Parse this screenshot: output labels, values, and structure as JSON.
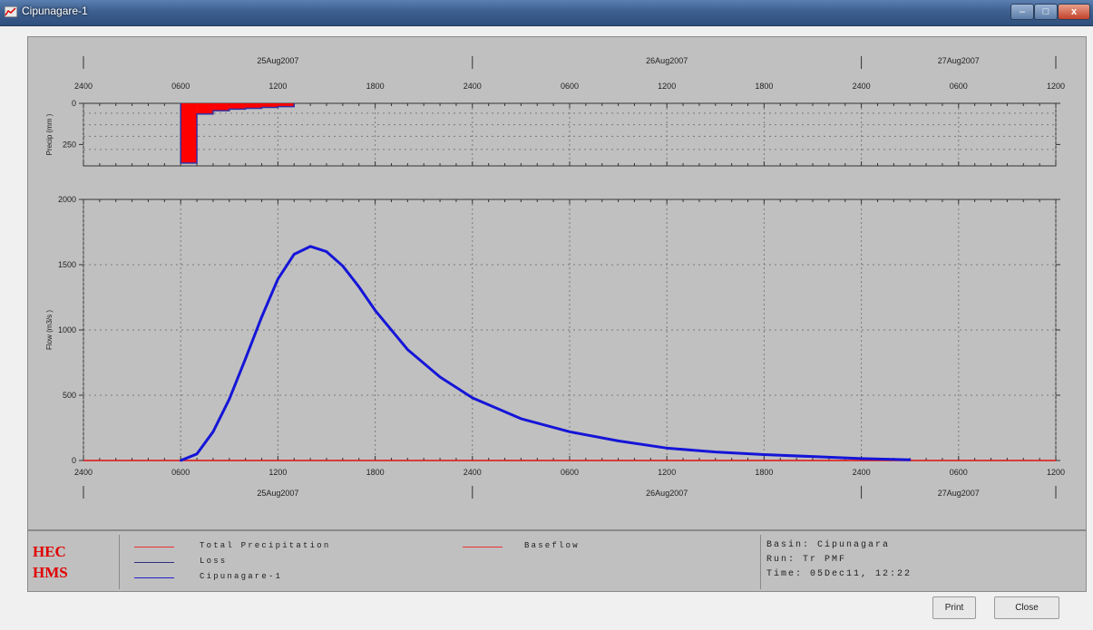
{
  "window": {
    "title": "Cipunagare-1",
    "minimize": "–",
    "maximize": "□",
    "close": "x",
    "app_icon": "chart-window-icon"
  },
  "plot": {
    "date_labels": [
      "25Aug2007",
      "26Aug2007",
      "27Aug2007"
    ],
    "time_ticks": [
      "2400",
      "0600",
      "1200",
      "1800",
      "2400",
      "0600",
      "1200",
      "1800",
      "2400",
      "0600",
      "1200"
    ],
    "colors": {
      "background": "#c0c0c0",
      "precip": "#ff0000",
      "flow": "#1515d8",
      "baseflow": "#e01010",
      "grid": "#7a7a7a"
    }
  },
  "chart_data": [
    {
      "type": "bar",
      "ylabel": "Precip (mm  )",
      "y_tick_labels": [
        "0",
        "250"
      ],
      "ylim": [
        0,
        380
      ],
      "y_inverted": true,
      "x_unit": "hours from 25Aug2007 0000",
      "x_range": [
        0,
        60
      ],
      "grid": true,
      "series": [
        {
          "name": "Total Precipitation",
          "x": [
            6,
            7,
            8,
            9,
            10,
            11,
            12
          ],
          "values": [
            363,
            65,
            45,
            35,
            30,
            25,
            20
          ]
        },
        {
          "name": "Loss",
          "x": [
            6,
            7,
            8,
            9,
            10,
            11,
            12
          ],
          "values": [
            363,
            65,
            45,
            35,
            30,
            25,
            20
          ]
        }
      ]
    },
    {
      "type": "line",
      "ylabel": "Flow (m3/s  )",
      "y_tick_labels": [
        "0",
        "500",
        "1000",
        "1500",
        "2000"
      ],
      "ylim": [
        0,
        2000
      ],
      "x_unit": "hours from 25Aug2007 0000",
      "x_range": [
        0,
        60
      ],
      "grid": true,
      "series": [
        {
          "name": "Cipunagare-1",
          "x": [
            6,
            7,
            8,
            9,
            10,
            11,
            12,
            13,
            14,
            15,
            16,
            17,
            18,
            20,
            22,
            24,
            27,
            30,
            33,
            36,
            39,
            42,
            45,
            48,
            51
          ],
          "values": [
            0,
            50,
            220,
            470,
            780,
            1100,
            1390,
            1580,
            1640,
            1600,
            1490,
            1330,
            1150,
            850,
            640,
            480,
            320,
            220,
            150,
            95,
            65,
            45,
            30,
            15,
            5
          ]
        },
        {
          "name": "Baseflow",
          "x": [
            0,
            60
          ],
          "values": [
            0,
            0
          ]
        }
      ]
    }
  ],
  "legend": {
    "logo_line1": "HEC",
    "logo_line2": "HMS",
    "items": [
      {
        "label": "Total Precipitation",
        "color": "#e83030"
      },
      {
        "label": "Loss",
        "color": "#303080"
      },
      {
        "label": "Cipunagare-1",
        "color": "#2020d0"
      },
      {
        "label": "Baseflow",
        "color": "#e83030"
      }
    ],
    "info": [
      {
        "key": "Basin:",
        "value": "Cipunagara"
      },
      {
        "key": "Run:",
        "value": "Tr PMF"
      },
      {
        "key": "Time:",
        "value": "05Dec11, 12:22"
      }
    ]
  },
  "buttons": {
    "print": "Print",
    "close": "Close"
  }
}
